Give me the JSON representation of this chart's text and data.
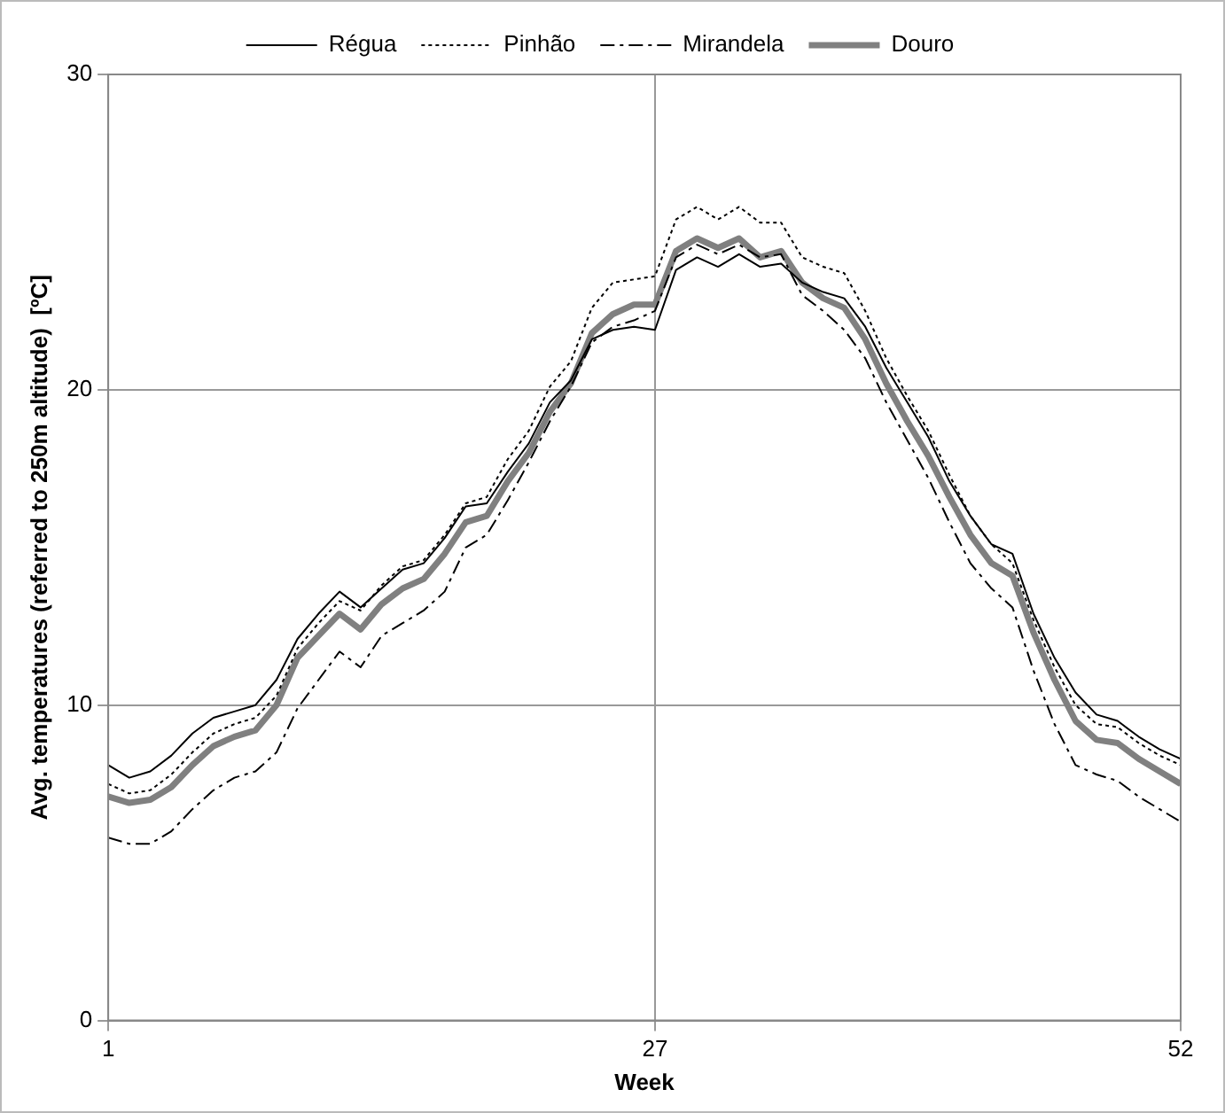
{
  "chart_data": {
    "type": "line",
    "xlabel": "Week",
    "ylabel": "Avg. temperatures (referred to 250m altitude)  [ºC]",
    "x": [
      1,
      2,
      3,
      4,
      5,
      6,
      7,
      8,
      9,
      10,
      11,
      12,
      13,
      14,
      15,
      16,
      17,
      18,
      19,
      20,
      21,
      22,
      23,
      24,
      25,
      26,
      27,
      28,
      29,
      30,
      31,
      32,
      33,
      34,
      35,
      36,
      37,
      38,
      39,
      40,
      41,
      42,
      43,
      44,
      45,
      46,
      47,
      48,
      49,
      50,
      51,
      52
    ],
    "xlim": [
      1,
      52
    ],
    "xticks": [
      1,
      27,
      52
    ],
    "ylim": [
      0,
      30
    ],
    "yticks": [
      0,
      10,
      20,
      30
    ],
    "grid": true,
    "legend": "top",
    "marker": "none",
    "series": [
      {
        "name": "Régua",
        "color": "#000000",
        "line_style": "solid",
        "values": [
          8.1,
          7.7,
          7.9,
          8.4,
          9.1,
          9.6,
          9.8,
          10.0,
          10.8,
          12.1,
          12.9,
          13.6,
          13.1,
          13.7,
          14.3,
          14.5,
          15.3,
          16.3,
          16.4,
          17.4,
          18.3,
          19.6,
          20.3,
          21.6,
          21.9,
          22.0,
          21.9,
          23.8,
          24.2,
          23.9,
          24.3,
          23.9,
          24.0,
          23.4,
          23.1,
          22.9,
          22.0,
          20.7,
          19.6,
          18.5,
          17.1,
          16.0,
          15.1,
          14.8,
          12.9,
          11.5,
          10.4,
          9.7,
          9.5,
          9.0,
          8.6,
          8.3
        ]
      },
      {
        "name": "Pinhão",
        "color": "#000000",
        "line_style": "dotted",
        "values": [
          7.5,
          7.2,
          7.3,
          7.8,
          8.5,
          9.1,
          9.4,
          9.6,
          10.3,
          11.8,
          12.6,
          13.3,
          13.0,
          13.8,
          14.4,
          14.6,
          15.4,
          16.4,
          16.6,
          17.8,
          18.7,
          20.1,
          20.9,
          22.6,
          23.4,
          23.5,
          23.6,
          25.4,
          25.8,
          25.4,
          25.8,
          25.3,
          25.3,
          24.2,
          23.9,
          23.7,
          22.5,
          21.0,
          19.8,
          18.7,
          17.3,
          16.0,
          15.1,
          14.5,
          12.7,
          11.2,
          10.0,
          9.4,
          9.3,
          8.8,
          8.4,
          8.1
        ]
      },
      {
        "name": "Mirandela",
        "color": "#000000",
        "line_style": "dashed",
        "values": [
          5.8,
          5.6,
          5.6,
          6.0,
          6.7,
          7.3,
          7.7,
          7.9,
          8.5,
          9.9,
          10.8,
          11.7,
          11.2,
          12.2,
          12.6,
          13.0,
          13.6,
          15.0,
          15.4,
          16.5,
          17.7,
          19.0,
          20.1,
          21.5,
          22.0,
          22.2,
          22.5,
          24.2,
          24.6,
          24.3,
          24.6,
          24.2,
          24.3,
          23.0,
          22.5,
          21.9,
          21.0,
          19.6,
          18.4,
          17.2,
          15.8,
          14.5,
          13.7,
          13.1,
          11.1,
          9.4,
          8.1,
          7.8,
          7.6,
          7.1,
          6.7,
          6.3
        ]
      },
      {
        "name": "Douro",
        "color": "#808080",
        "line_style": "solid",
        "values": [
          7.1,
          6.9,
          7.0,
          7.4,
          8.1,
          8.7,
          9.0,
          9.2,
          10.0,
          11.5,
          12.2,
          12.9,
          12.4,
          13.2,
          13.7,
          14.0,
          14.8,
          15.8,
          16.0,
          17.1,
          18.0,
          19.3,
          20.2,
          21.8,
          22.4,
          22.7,
          22.7,
          24.4,
          24.8,
          24.5,
          24.8,
          24.2,
          24.4,
          23.4,
          22.9,
          22.6,
          21.6,
          20.2,
          19.0,
          17.9,
          16.6,
          15.4,
          14.5,
          14.1,
          12.3,
          10.8,
          9.5,
          8.9,
          8.8,
          8.3,
          7.9,
          7.5
        ]
      }
    ]
  }
}
